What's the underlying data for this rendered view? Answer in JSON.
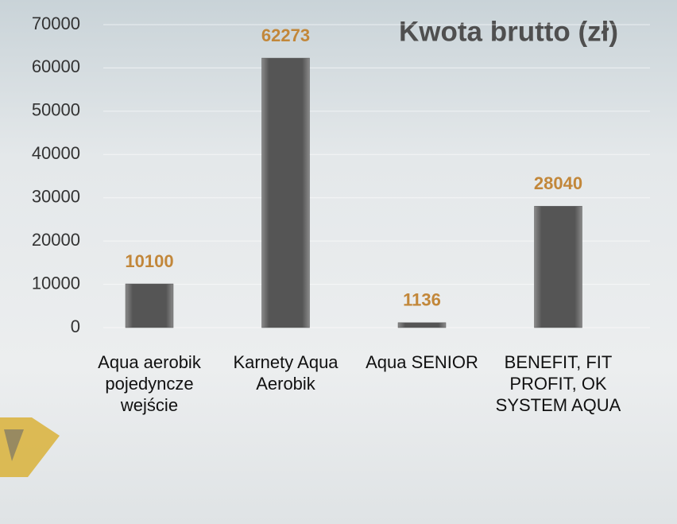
{
  "chart_data": {
    "type": "bar",
    "title": "Kwota brutto (zł)",
    "categories": [
      "Aqua aerobik pojedyncze wejście",
      "Karnety Aqua Aerobik",
      "Aqua SENIOR",
      "BENEFIT, FIT PROFIT, OK SYSTEM AQUA"
    ],
    "values": [
      10100,
      62273,
      1136,
      28040
    ],
    "color": "#5a5a5a",
    "ylim": [
      0,
      70000
    ],
    "yticks": [
      0,
      10000,
      20000,
      30000,
      40000,
      50000,
      60000,
      70000
    ],
    "grid": true
  }
}
